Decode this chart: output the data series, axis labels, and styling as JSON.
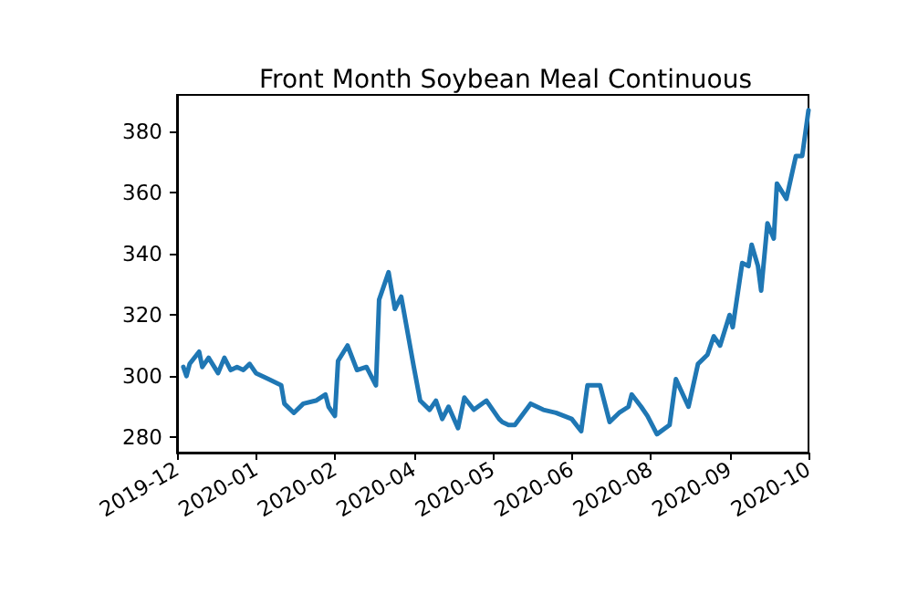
{
  "chart_data": {
    "type": "line",
    "title": "Front Month Soybean Meal Continuous",
    "categories": [
      "2019-12",
      null,
      null,
      null,
      null,
      null,
      null,
      null,
      null,
      null,
      null,
      null,
      null,
      null,
      null,
      null,
      null,
      null,
      null,
      null,
      null,
      null,
      null,
      null,
      null,
      "2020-01",
      null,
      null,
      null,
      null,
      null,
      null,
      null,
      null,
      null,
      null,
      null,
      null,
      null,
      null,
      null,
      null,
      null,
      null,
      null,
      null,
      null,
      null,
      null,
      null,
      "2020-02",
      null,
      null,
      null,
      null,
      null,
      null,
      null,
      null,
      null,
      null,
      null,
      null,
      null,
      null,
      null,
      null,
      null,
      null,
      null,
      null,
      null,
      null,
      null,
      null,
      "2020-04",
      null,
      null,
      null,
      null,
      null,
      null,
      null,
      null,
      null,
      null,
      null,
      null,
      null,
      null,
      null,
      null,
      null,
      null,
      null,
      null,
      null,
      null,
      null,
      null,
      "2020-05",
      null,
      null,
      null,
      null,
      null,
      null,
      null,
      null,
      null,
      null,
      null,
      null,
      null,
      null,
      null,
      null,
      null,
      null,
      null,
      null,
      null,
      null,
      null,
      null,
      "2020-06",
      null,
      null,
      null,
      null,
      null,
      null,
      null,
      null,
      null,
      null,
      null,
      null,
      null,
      null,
      null,
      null,
      null,
      null,
      null,
      null,
      null,
      null,
      null,
      null,
      "2020-08",
      null,
      null,
      null,
      null,
      null,
      null,
      null,
      null,
      null,
      null,
      null,
      null,
      null,
      null,
      null,
      null,
      null,
      null,
      null,
      null,
      null,
      null,
      null,
      null,
      "2020-09",
      null,
      null,
      null,
      null,
      null,
      null,
      null,
      null,
      null,
      null,
      null,
      null,
      null,
      null,
      null,
      null,
      null,
      null,
      null,
      null,
      null,
      null,
      null,
      null,
      "2020-10"
    ],
    "series": [
      {
        "color": "#1f77b4",
        "values": [
          null,
          null,
          303,
          300,
          304,
          null,
          null,
          308,
          303,
          null,
          306,
          null,
          null,
          301,
          null,
          306,
          null,
          302,
          null,
          303,
          null,
          302,
          null,
          304,
          null,
          301,
          null,
          null,
          null,
          299,
          null,
          null,
          null,
          297,
          291,
          null,
          null,
          288,
          null,
          null,
          291,
          null,
          null,
          null,
          292,
          null,
          null,
          294,
          290,
          null,
          287,
          305,
          null,
          null,
          310,
          null,
          null,
          302,
          null,
          null,
          303,
          null,
          null,
          297,
          325,
          null,
          null,
          334,
          null,
          322,
          null,
          326,
          null,
          null,
          null,
          303,
          null,
          292,
          null,
          null,
          289,
          null,
          292,
          null,
          286,
          null,
          290,
          null,
          null,
          283,
          null,
          293,
          null,
          null,
          289,
          null,
          null,
          null,
          292,
          null,
          null,
          null,
          286,
          285,
          null,
          284,
          null,
          284,
          null,
          null,
          null,
          null,
          291,
          null,
          null,
          null,
          289,
          null,
          null,
          null,
          288,
          null,
          null,
          null,
          null,
          286,
          null,
          null,
          282,
          null,
          297,
          null,
          null,
          null,
          297,
          null,
          null,
          285,
          null,
          null,
          288,
          null,
          null,
          290,
          294,
          null,
          null,
          290,
          null,
          287,
          null,
          null,
          281,
          null,
          null,
          null,
          284,
          null,
          299,
          null,
          null,
          null,
          290,
          null,
          null,
          304,
          null,
          null,
          307,
          null,
          313,
          null,
          310,
          null,
          null,
          320,
          316,
          null,
          null,
          337,
          null,
          336,
          343,
          null,
          336,
          328,
          null,
          350,
          null,
          345,
          363,
          null,
          null,
          358,
          null,
          null,
          372,
          null,
          372,
          null,
          387
        ]
      }
    ],
    "ylim": [
      275,
      392
    ],
    "yticks": [
      280,
      300,
      320,
      340,
      360,
      380
    ],
    "grid": false,
    "marker": "none",
    "line_style": "solid"
  }
}
